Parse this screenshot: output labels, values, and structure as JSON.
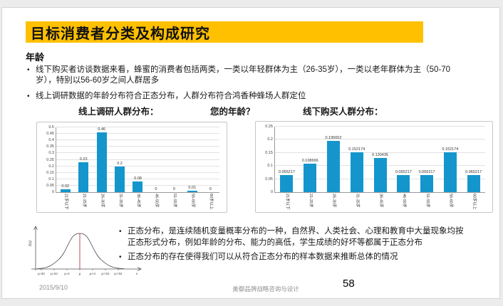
{
  "slide": {
    "title": "目标消费者分类及构成研究",
    "section_heading": "年龄",
    "bullets": [
      "线下购买者访谈数据来看，蜂蜜的消费者包括两类，一类以年轻群体为主（26-35岁），一类以老年群体为主（50-70岁），特别以56-60岁之间人群居多",
      "线上调研数据的年龄分布符合正态分布，人群分布符合鸿香种蜂场人群定位"
    ],
    "chart_captions": [
      "线上调研人群分布：",
      "您的年龄？",
      "线下购买人群分布："
    ],
    "normal_bullets": [
      "正态分布，是连续随机变量概率分布的一种，自然界、人类社会、心理和教育中大量现象均按正态形式分布，例如年龄的分布、能力的高低，学生成绩的好坏等都属于正态分布",
      "正态分布的存在使得我们可以从符合正态分布的样本数据来推断总体的情况"
    ],
    "footer": {
      "date": "2015/9/10",
      "company": "美御品牌战略咨询与设计",
      "page": "58"
    }
  },
  "colors": {
    "accent_yellow": "#FFC000",
    "bar_blue": "#1496CD",
    "grid": "#e2e2e2",
    "curve_red": "#b03a3a"
  },
  "chart_data": [
    {
      "type": "bar",
      "title": "线上调研人群分布",
      "categories": [
        "21岁以下",
        "21-25岁",
        "26-30岁",
        "31-35岁",
        "36-45岁",
        "46-50岁",
        "51-55岁",
        "56-60岁",
        "60岁以上"
      ],
      "values": [
        0.02,
        0.23,
        0.46,
        0.2,
        0.08,
        0,
        0,
        0.01,
        0
      ],
      "labels": [
        "0.02",
        "0.23",
        "0.46",
        "0.2",
        "0.08",
        "0",
        "0",
        "0.01",
        "0"
      ],
      "xlabel": "",
      "ylabel": "",
      "ylim": [
        0,
        0.5
      ],
      "ytick_step": 0.05,
      "grid": true,
      "legend": "none"
    },
    {
      "type": "bar",
      "title": "线下购买人群分布",
      "categories": [
        "21岁以下",
        "21-25岁",
        "26-30岁",
        "31-35岁",
        "36-45岁",
        "46-50岁",
        "51-55岁",
        "56-60岁",
        "60岁以上"
      ],
      "values": [
        0.065217,
        0.108696,
        0.195652,
        0.152174,
        0.130435,
        0.065217,
        0.065217,
        0.152174,
        0.065217
      ],
      "labels": [
        "0.065217",
        "0.108696",
        "0.195652",
        "0.152174",
        "0.130435",
        "0.065217",
        "0.065217",
        "0.152174",
        "0.065217"
      ],
      "xlabel": "",
      "ylabel": "",
      "ylim": [
        0,
        0.25
      ],
      "ytick_step": 0.05,
      "grid": true,
      "legend": "none"
    }
  ],
  "normal_curve": {
    "ylabel": "f(x)",
    "x_ticks": [
      "μ-3σ",
      "μ-2σ",
      "μ-σ",
      "μ",
      "μ+σ",
      "μ+2σ",
      "μ+3σ"
    ],
    "x_axis_label": "x"
  }
}
